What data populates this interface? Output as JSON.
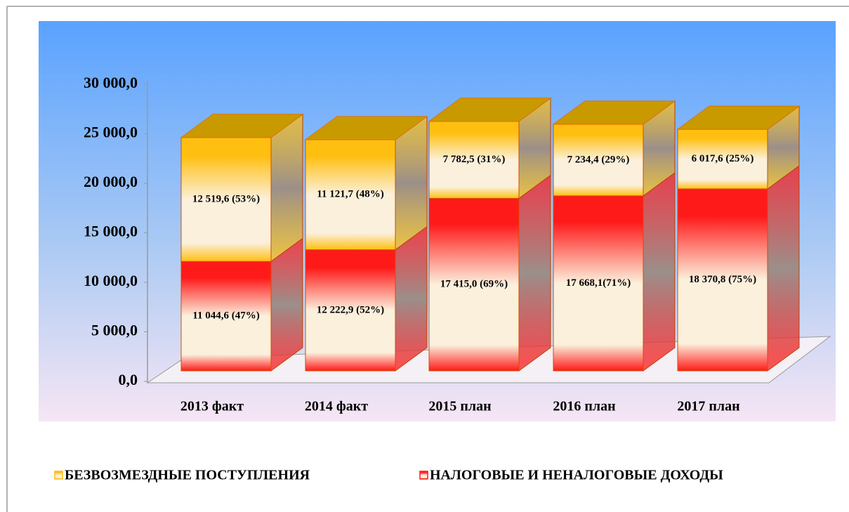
{
  "chart_data": {
    "type": "bar3d_stacked",
    "categories": [
      "2013 факт",
      "2014 факт",
      "2015 план",
      "2016 план",
      "2017 план"
    ],
    "series": [
      {
        "name": "НАЛОГОВЫЕ И НЕНАЛОГОВЫЕ ДОХОДЫ",
        "color": "#ff1a1a",
        "values": [
          11044.6,
          12222.9,
          17415.0,
          17668.1,
          18370.8
        ],
        "value_labels": [
          "11 044,6 (47%)",
          "12 222,9 (52%)",
          "17 415,0 (69%)",
          "17 668,1(71%)",
          "18 370,8 (75%)"
        ]
      },
      {
        "name": "БЕЗВОЗМЕЗДНЫЕ ПОСТУПЛЕНИЯ",
        "color": "#ffbf10",
        "values": [
          12519.6,
          11121.7,
          7782.5,
          7234.4,
          6017.6
        ],
        "value_labels": [
          "12 519,6 (53%)",
          "11 121,7 (48%)",
          "7 782,5 (31%)",
          "7 234,4 (29%)",
          "6 017,6 (25%)"
        ]
      }
    ],
    "ylim": [
      0,
      30000
    ],
    "yticks": [
      {
        "value": 0,
        "label": "0,0"
      },
      {
        "value": 5000,
        "label": "5 000,0"
      },
      {
        "value": 10000,
        "label": "10 000,0"
      },
      {
        "value": 15000,
        "label": "15 000,0"
      },
      {
        "value": 20000,
        "label": "20 000,0"
      },
      {
        "value": 25000,
        "label": "25 000,0"
      },
      {
        "value": 30000,
        "label": "30 000,0"
      }
    ],
    "grid": false,
    "legend": "bottom"
  }
}
